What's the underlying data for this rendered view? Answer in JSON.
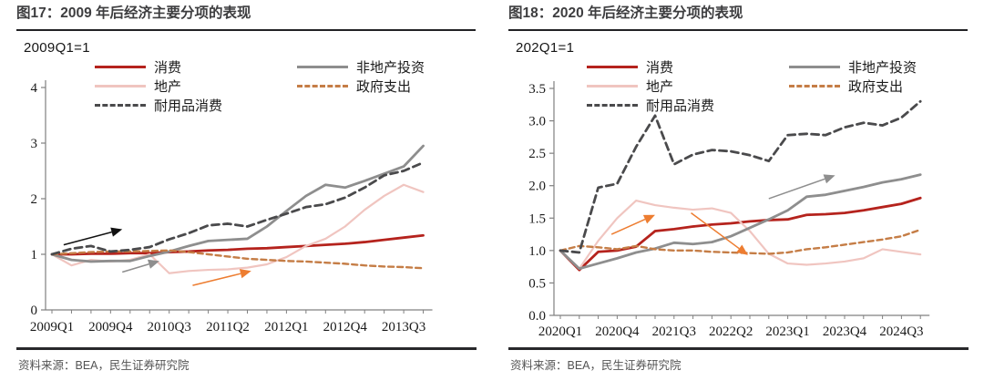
{
  "panels": [
    {
      "title": "图17：2009 年后经济主要分项的表现",
      "unit_label": "2009Q1=1",
      "source": "资料来源：BEA，民生证券研究院"
    },
    {
      "title": "图18：2020 年后经济主要分项的表现",
      "unit_label": "202Q1=1",
      "source": "资料来源：BEA，民生证券研究院"
    }
  ],
  "colors": {
    "consumption_red": "#b5231d",
    "real_estate_pink": "#f0c5c0",
    "non_re_invest_gray": "#8e8e8e",
    "gov_spending_orange": "#c57d46",
    "durables_dark": "#4a4a4c",
    "arrow_orange": "#ed7d31",
    "arrow_black": "#111111",
    "axis": "#808080",
    "title_text": "#3d3d3f"
  },
  "chart_data": [
    {
      "type": "line",
      "title": "图17：2009 年后经济主要分项的表现",
      "unit_label": "2009Q1=1",
      "x": [
        "2009Q1",
        "2009Q2",
        "2009Q3",
        "2009Q4",
        "2010Q1",
        "2010Q2",
        "2010Q3",
        "2010Q4",
        "2011Q1",
        "2011Q2",
        "2011Q3",
        "2011Q4",
        "2012Q1",
        "2012Q2",
        "2012Q3",
        "2012Q4",
        "2013Q1",
        "2013Q2",
        "2013Q3",
        "2013Q4"
      ],
      "x_axis_labels": [
        "2009Q1",
        "2009Q4",
        "2010Q3",
        "2011Q2",
        "2012Q1",
        "2012Q4",
        "2013Q3"
      ],
      "x_label_indices": [
        0,
        3,
        6,
        9,
        12,
        15,
        18
      ],
      "ylim": [
        0,
        4
      ],
      "ytick_labels": [
        "0",
        "1",
        "2",
        "3",
        "4"
      ],
      "grid": false,
      "legend_position": "top",
      "series": [
        {
          "name": "消费",
          "color": "#b5231d",
          "dash": null,
          "width": 2.8,
          "values": [
            1.0,
            1.0,
            1.01,
            1.01,
            1.02,
            1.02,
            1.04,
            1.05,
            1.07,
            1.08,
            1.1,
            1.11,
            1.13,
            1.15,
            1.17,
            1.19,
            1.22,
            1.26,
            1.3,
            1.34
          ]
        },
        {
          "name": "地产",
          "color": "#f0c5c0",
          "dash": null,
          "width": 2.2,
          "values": [
            1.0,
            0.8,
            0.9,
            0.87,
            0.9,
            1.0,
            0.66,
            0.7,
            0.72,
            0.73,
            0.76,
            0.82,
            0.95,
            1.15,
            1.28,
            1.5,
            1.8,
            2.05,
            2.25,
            2.12
          ]
        },
        {
          "name": "非地产投资",
          "color": "#8e8e8e",
          "dash": null,
          "width": 2.8,
          "values": [
            1.0,
            0.9,
            0.87,
            0.88,
            0.88,
            0.97,
            1.05,
            1.15,
            1.24,
            1.26,
            1.28,
            1.5,
            1.78,
            2.05,
            2.25,
            2.2,
            2.32,
            2.45,
            2.58,
            2.95
          ]
        },
        {
          "name": "政府支出",
          "color": "#c57d46",
          "dash": "6 4",
          "width": 2.4,
          "values": [
            1.0,
            1.02,
            1.04,
            1.05,
            1.05,
            1.06,
            1.07,
            1.04,
            1.0,
            0.96,
            0.92,
            0.9,
            0.88,
            0.87,
            0.85,
            0.83,
            0.8,
            0.78,
            0.77,
            0.75
          ]
        },
        {
          "name": "耐用品消费",
          "color": "#4a4a4c",
          "dash": "8 5",
          "width": 2.8,
          "values": [
            1.0,
            1.1,
            1.15,
            1.05,
            1.08,
            1.13,
            1.27,
            1.38,
            1.52,
            1.55,
            1.5,
            1.62,
            1.73,
            1.85,
            1.9,
            2.02,
            2.2,
            2.42,
            2.5,
            2.65
          ]
        }
      ],
      "legend_columns": [
        [
          0,
          1,
          4
        ],
        [
          2,
          3
        ]
      ],
      "arrows": [
        {
          "color": "#111111",
          "from": [
            0.6,
            1.17
          ],
          "to": [
            3.6,
            1.45
          ]
        },
        {
          "color": "#8e8e8e",
          "from": [
            3.6,
            0.68
          ],
          "to": [
            5.5,
            0.88
          ]
        },
        {
          "color": "#ed7d31",
          "from": [
            7.2,
            0.44
          ],
          "to": [
            10.2,
            0.7
          ]
        }
      ]
    },
    {
      "type": "line",
      "title": "图18：2020 年后经济主要分项的表现",
      "unit_label": "202Q1=1",
      "x": [
        "2020Q1",
        "2020Q2",
        "2020Q3",
        "2020Q4",
        "2021Q1",
        "2021Q2",
        "2021Q3",
        "2021Q4",
        "2022Q1",
        "2022Q2",
        "2022Q3",
        "2022Q4",
        "2023Q1",
        "2023Q2",
        "2023Q3",
        "2023Q4",
        "2024Q1",
        "2024Q2",
        "2024Q3",
        "2024Q4"
      ],
      "x_axis_labels": [
        "2020Q1",
        "2020Q4",
        "2021Q3",
        "2022Q2",
        "2023Q1",
        "2023Q4",
        "2024Q3"
      ],
      "x_label_indices": [
        0,
        3,
        6,
        9,
        12,
        15,
        18
      ],
      "ylim": [
        0,
        3.5
      ],
      "ytick_labels": [
        "0.0",
        "0.5",
        "1.0",
        "1.5",
        "2.0",
        "2.5",
        "3.0",
        "3.5"
      ],
      "grid": false,
      "legend_position": "top",
      "series": [
        {
          "name": "消费",
          "color": "#b5231d",
          "dash": null,
          "width": 2.8,
          "values": [
            1.0,
            0.7,
            0.98,
            1.0,
            1.06,
            1.3,
            1.33,
            1.37,
            1.4,
            1.42,
            1.45,
            1.47,
            1.48,
            1.55,
            1.56,
            1.58,
            1.62,
            1.67,
            1.72,
            1.81
          ]
        },
        {
          "name": "地产",
          "color": "#f0c5c0",
          "dash": null,
          "width": 2.2,
          "values": [
            1.0,
            0.72,
            1.15,
            1.5,
            1.77,
            1.7,
            1.66,
            1.63,
            1.65,
            1.58,
            1.3,
            0.95,
            0.8,
            0.78,
            0.8,
            0.83,
            0.88,
            1.02,
            0.98,
            0.94
          ]
        },
        {
          "name": "非地产投资",
          "color": "#8e8e8e",
          "dash": null,
          "width": 2.8,
          "values": [
            1.0,
            0.72,
            0.8,
            0.88,
            0.97,
            1.03,
            1.12,
            1.1,
            1.13,
            1.22,
            1.35,
            1.48,
            1.62,
            1.83,
            1.86,
            1.92,
            1.98,
            2.05,
            2.1,
            2.17
          ]
        },
        {
          "name": "政府支出",
          "color": "#c57d46",
          "dash": "6 4",
          "width": 2.4,
          "values": [
            1.0,
            1.07,
            1.05,
            1.02,
            1.07,
            1.02,
            1.0,
            1.0,
            0.98,
            0.97,
            0.96,
            0.95,
            0.97,
            1.02,
            1.05,
            1.09,
            1.13,
            1.17,
            1.22,
            1.32
          ]
        },
        {
          "name": "耐用品消费",
          "color": "#4a4a4c",
          "dash": "8 5",
          "width": 2.8,
          "values": [
            1.0,
            0.97,
            1.97,
            2.03,
            2.6,
            3.08,
            2.33,
            2.48,
            2.55,
            2.53,
            2.47,
            2.38,
            2.78,
            2.8,
            2.78,
            2.9,
            2.97,
            2.93,
            3.05,
            3.3
          ]
        }
      ],
      "legend_columns": [
        [
          0,
          1,
          4
        ],
        [
          2,
          3
        ]
      ],
      "arrows": [
        {
          "color": "#ed7d31",
          "from": [
            2.7,
            1.25
          ],
          "to": [
            5.0,
            1.55
          ]
        },
        {
          "color": "#ed7d31",
          "from": [
            6.9,
            1.58
          ],
          "to": [
            9.9,
            0.93
          ]
        },
        {
          "color": "#8e8e8e",
          "from": [
            11.0,
            1.8
          ],
          "to": [
            14.5,
            2.16
          ]
        }
      ]
    }
  ]
}
